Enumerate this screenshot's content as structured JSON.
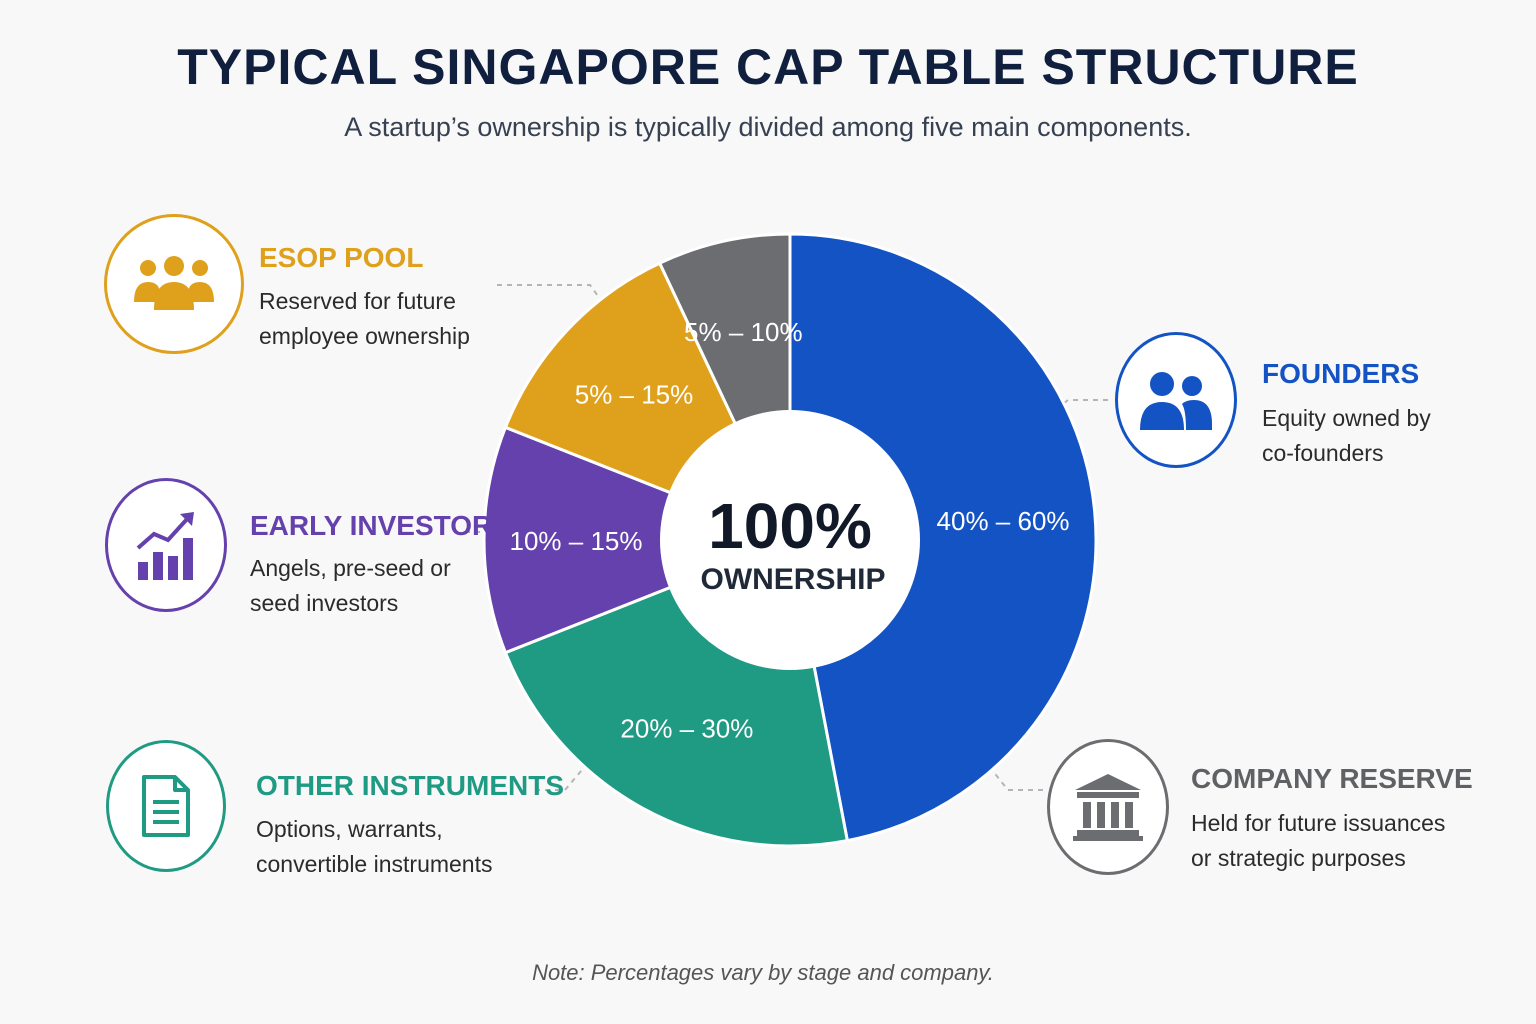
{
  "title": "TYPICAL SINGAPORE CAP TABLE STRUCTURE",
  "subtitle": "A startup’s ownership is typically divided among five main components.",
  "center": {
    "value": "100%",
    "label": "OWNERSHIP"
  },
  "note": "Note: Percentages vary by stage and company.",
  "colors": {
    "founders": "#1453c4",
    "other_instruments": "#1f9a83",
    "early_investors": "#6441ad",
    "esop_pool": "#dfa01c",
    "company_reserve": "#6b6d70"
  },
  "chart_data": {
    "type": "pie",
    "style": "donut",
    "slices": [
      {
        "key": "founders",
        "name": "FOUNDERS",
        "label": "40% – 60%",
        "range": [
          40,
          60
        ],
        "value": 47
      },
      {
        "key": "other_instruments",
        "name": "OTHER INSTRUMENTS",
        "label": "20% – 30%",
        "range": [
          20,
          30
        ],
        "value": 22
      },
      {
        "key": "early_investors",
        "name": "EARLY INVESTORS",
        "label": "10% – 15%",
        "range": [
          10,
          15
        ],
        "value": 12
      },
      {
        "key": "esop_pool",
        "name": "ESOP POOL",
        "label": "5% – 15%",
        "range": [
          5,
          15
        ],
        "value": 12
      },
      {
        "key": "company_reserve",
        "name": "COMPANY RESERVE",
        "label": "5% – 10%",
        "range": [
          5,
          10
        ],
        "value": 7
      }
    ]
  },
  "legend": {
    "esop_pool": {
      "title": "ESOP POOL",
      "desc": [
        "Reserved for future",
        "employee ownership"
      ],
      "icon": "people-group-icon"
    },
    "early_investors": {
      "title": "EARLY INVESTORS",
      "desc": [
        "Angels, pre-seed or",
        "seed investors"
      ],
      "icon": "growth-chart-icon"
    },
    "other_instruments": {
      "title": "OTHER INSTRUMENTS",
      "desc": [
        "Options, warrants,",
        "convertible instruments"
      ],
      "icon": "document-icon"
    },
    "founders": {
      "title": "FOUNDERS",
      "desc": [
        "Equity owned by",
        "co-founders"
      ],
      "icon": "two-people-icon"
    },
    "company_reserve": {
      "title": "COMPANY RESERVE",
      "desc": [
        "Held for future issuances",
        "or strategic purposes"
      ],
      "icon": "bank-building-icon"
    }
  }
}
